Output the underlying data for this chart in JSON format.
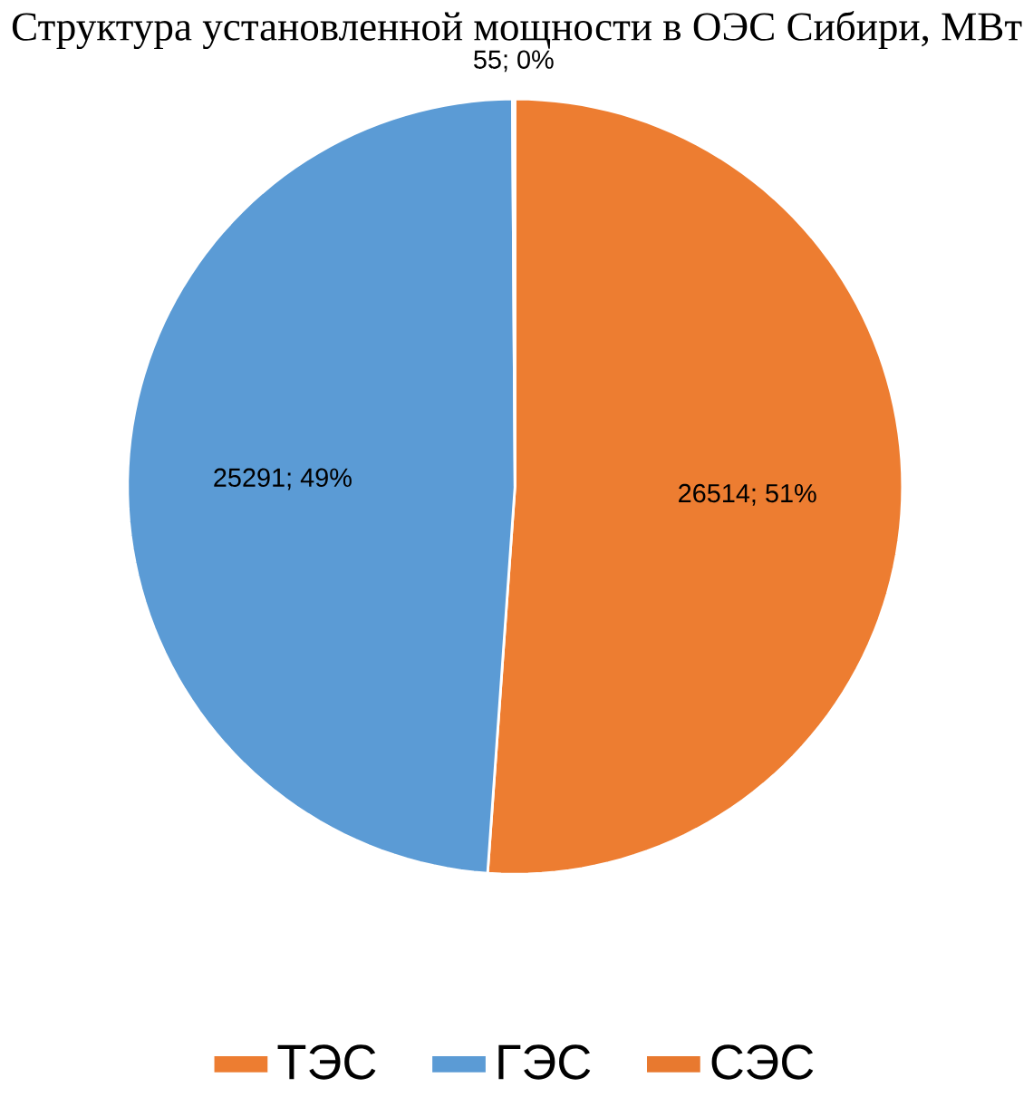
{
  "chart_data": {
    "type": "pie",
    "title": "Структура установленной мощности в ОЭС Сибири, МВт",
    "categories": [
      "ТЭС",
      "ГЭС",
      "СЭС"
    ],
    "values": [
      26514,
      25291,
      55
    ],
    "colors": [
      "#ed7d31",
      "#5b9bd5",
      "#e8792f"
    ],
    "value_labels": [
      "26514; 51%",
      "25291; 49%",
      "55; 0%"
    ],
    "legend": "bottom"
  }
}
